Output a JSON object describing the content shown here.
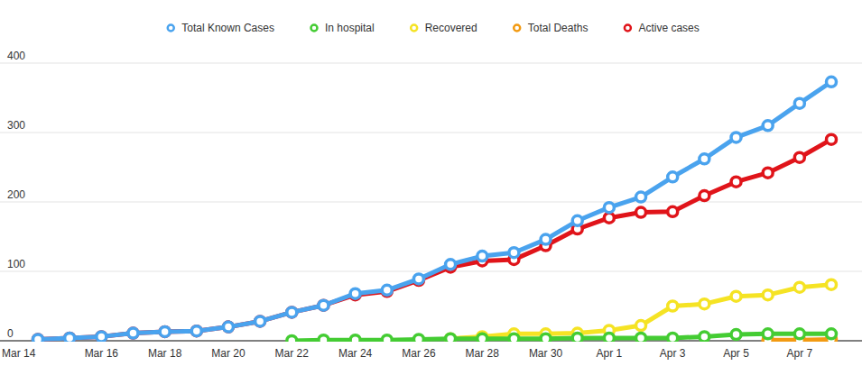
{
  "chart_data": {
    "type": "line",
    "categories": [
      "Mar 14",
      null,
      "Mar 16",
      null,
      "Mar 18",
      null,
      "Mar 20",
      null,
      "Mar 22",
      null,
      "Mar 24",
      null,
      "Mar 26",
      null,
      "Mar 28",
      null,
      "Mar 30",
      null,
      "Apr 1",
      null,
      "Apr 3",
      null,
      "Apr 5",
      null,
      "Apr 7",
      null
    ],
    "series": [
      {
        "name": "Total Known Cases",
        "color": "#4aa3ee",
        "marker": "circle",
        "values": [
          2,
          4,
          6,
          11,
          13,
          14,
          20,
          28,
          41,
          51,
          68,
          73,
          89,
          110,
          122,
          127,
          146,
          173,
          192,
          207,
          236,
          262,
          293,
          310,
          342,
          373
        ]
      },
      {
        "name": "In hospital",
        "color": "#44cc33",
        "marker": "circle",
        "values": [
          null,
          null,
          null,
          null,
          null,
          null,
          null,
          null,
          0,
          1,
          1,
          1,
          2,
          3,
          3,
          3,
          3,
          4,
          4,
          4,
          4,
          6,
          9,
          10,
          10,
          10
        ]
      },
      {
        "name": "Recovered",
        "color": "#f5e324",
        "marker": "circle",
        "values": [
          null,
          null,
          null,
          null,
          null,
          null,
          null,
          null,
          null,
          null,
          null,
          null,
          null,
          3,
          6,
          10,
          10,
          11,
          15,
          22,
          50,
          53,
          64,
          66,
          77,
          81
        ]
      },
      {
        "name": "Total Deaths",
        "color": "#f29a12",
        "marker": "circle",
        "values": [
          null,
          null,
          null,
          null,
          null,
          null,
          null,
          null,
          null,
          null,
          null,
          null,
          null,
          null,
          null,
          null,
          null,
          null,
          null,
          null,
          null,
          null,
          null,
          1,
          1,
          2
        ]
      },
      {
        "name": "Active cases",
        "color": "#e0141a",
        "marker": "circle",
        "values": [
          2,
          4,
          6,
          11,
          13,
          14,
          20,
          28,
          41,
          51,
          66,
          71,
          87,
          106,
          115,
          117,
          137,
          161,
          177,
          185,
          186,
          209,
          229,
          242,
          264,
          290
        ]
      }
    ],
    "ylim": [
      0,
      400
    ],
    "yticks": [
      0,
      100,
      200,
      300,
      400
    ],
    "grid": true,
    "legend": "top"
  }
}
